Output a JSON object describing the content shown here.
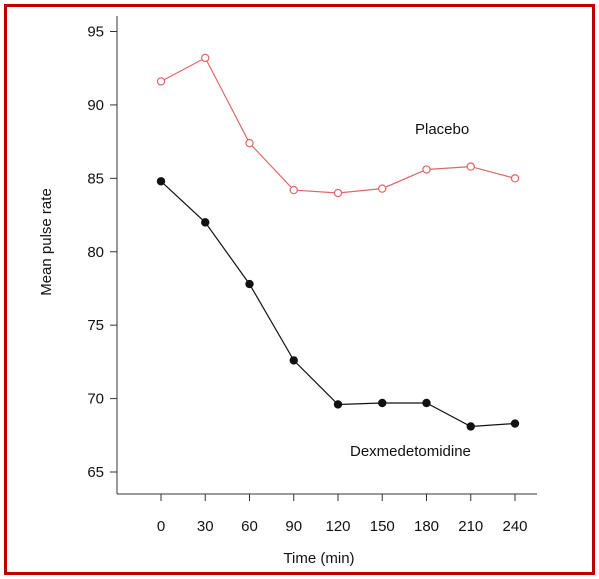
{
  "colors": {
    "frame": "#c00000",
    "placebo": "#e06666",
    "dexmedetomidine": "#111111",
    "axis": "#333333"
  },
  "chart_data": {
    "type": "line",
    "title": "",
    "xlabel": "Time (min)",
    "ylabel": "Mean pulse rate",
    "x": [
      0,
      30,
      60,
      90,
      120,
      150,
      180,
      210,
      240
    ],
    "x_tick_labels": [
      "0",
      "30",
      "60",
      "90",
      "120",
      "150",
      "180",
      "210",
      "240"
    ],
    "y_ticks": [
      65,
      70,
      75,
      80,
      85,
      90,
      95
    ],
    "ylim": [
      62,
      96.5
    ],
    "grid": false,
    "legend": "none (series labeled directly on plot)",
    "series": [
      {
        "name": "Placebo",
        "marker": "open circle",
        "values": [
          91.6,
          93.2,
          87.4,
          84.2,
          84.0,
          84.3,
          85.6,
          85.8,
          85.0
        ]
      },
      {
        "name": "Dexmedetomidine",
        "marker": "filled circle",
        "values": [
          84.8,
          82.0,
          77.8,
          72.6,
          69.6,
          69.7,
          69.7,
          68.1,
          68.3
        ]
      }
    ]
  }
}
